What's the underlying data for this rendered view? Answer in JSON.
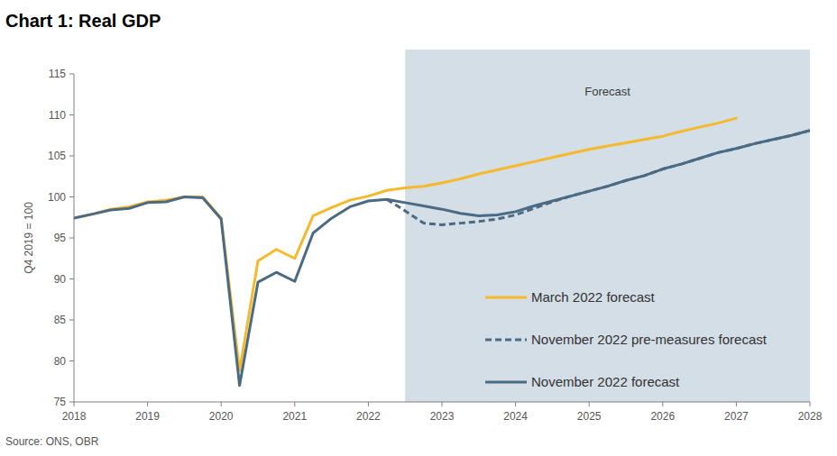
{
  "chart_data": {
    "type": "line",
    "title": "Chart 1: Real GDP",
    "y_label": "Q4 2019 = 100",
    "source": "Source: ONS, OBR",
    "forecast_region": {
      "label": "Forecast",
      "x": [
        2022.5,
        2028
      ]
    },
    "x": [
      2018,
      2018.25,
      2018.5,
      2018.75,
      2019,
      2019.25,
      2019.5,
      2019.75,
      2020,
      2020.25,
      2020.5,
      2020.75,
      2021,
      2021.25,
      2021.5,
      2021.75,
      2022,
      2022.25,
      2022.5,
      2022.75,
      2023,
      2023.25,
      2023.5,
      2023.75,
      2024,
      2024.25,
      2024.5,
      2024.75,
      2025,
      2025.25,
      2025.5,
      2025.75,
      2026,
      2026.25,
      2026.5,
      2026.75,
      2027,
      2027.25,
      2027.5,
      2027.75,
      2028
    ],
    "xlim": [
      2018,
      2028
    ],
    "xticks": [
      2018,
      2019,
      2020,
      2021,
      2022,
      2023,
      2024,
      2025,
      2026,
      2027,
      2028
    ],
    "ylim": [
      75,
      115
    ],
    "yticks": [
      75,
      80,
      85,
      90,
      95,
      100,
      105,
      110,
      115
    ],
    "grid": false,
    "legend": "lower right",
    "series": [
      {
        "name": "March 2022 forecast",
        "color": "#f6b92b",
        "line_style": "solid",
        "values": [
          97.4,
          97.9,
          98.5,
          98.8,
          99.4,
          99.6,
          100.0,
          100.0,
          97.4,
          78.8,
          92.2,
          93.6,
          92.5,
          97.7,
          98.7,
          99.6,
          100.1,
          100.8,
          101.1,
          101.3,
          101.7,
          102.2,
          102.8,
          103.3,
          103.8,
          104.3,
          104.8,
          105.3,
          105.8,
          106.2,
          106.6,
          107.0,
          107.4,
          108.0,
          108.5,
          109.0,
          109.6,
          null,
          null,
          null,
          null
        ]
      },
      {
        "name": "November 2022 pre-measures forecast",
        "color": "#4b6a84",
        "line_style": "dashed",
        "values": [
          null,
          null,
          null,
          null,
          null,
          null,
          null,
          null,
          null,
          null,
          null,
          null,
          null,
          null,
          null,
          null,
          null,
          99.7,
          98.3,
          96.8,
          96.6,
          96.8,
          97.0,
          97.3,
          97.8,
          98.6,
          99.4,
          100.1,
          100.7,
          101.3,
          102.0,
          102.6,
          103.4,
          104.0,
          104.7,
          105.4,
          105.9,
          106.5,
          107.0,
          107.5,
          108.1
        ]
      },
      {
        "name": "November 2022 forecast",
        "color": "#4b6a84",
        "line_style": "solid",
        "values": [
          97.4,
          97.9,
          98.4,
          98.6,
          99.3,
          99.4,
          100.0,
          99.9,
          97.3,
          77.0,
          89.6,
          90.8,
          89.7,
          95.6,
          97.4,
          98.8,
          99.5,
          99.7,
          99.3,
          98.9,
          98.5,
          98.0,
          97.7,
          97.8,
          98.2,
          98.9,
          99.5,
          100.1,
          100.7,
          101.3,
          102.0,
          102.6,
          103.4,
          104.0,
          104.7,
          105.4,
          105.9,
          106.5,
          107.0,
          107.5,
          108.1
        ]
      }
    ]
  }
}
